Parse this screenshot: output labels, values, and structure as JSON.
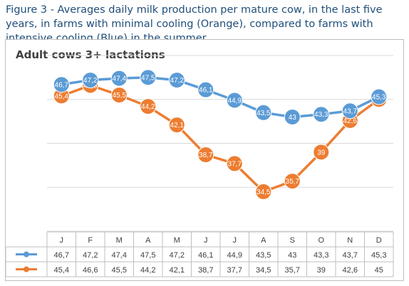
{
  "caption": "Figure 3 - Averages daily milk production per mature cow, in the last five years, in farms with minimal cooling (Orange), compared to farms with intensive cooling (Blue) in the summer.",
  "chart_data": {
    "type": "line",
    "title": "Adult cows 3+ lactations",
    "categories": [
      "J",
      "F",
      "M",
      "A",
      "M",
      "J",
      "J",
      "A",
      "S",
      "O",
      "N",
      "D"
    ],
    "ylim": [
      30,
      50
    ],
    "grid": true,
    "legend": "data-table",
    "series": [
      {
        "color": "#5b9bd5",
        "values": [
          46.7,
          47.2,
          47.4,
          47.5,
          47.2,
          46.1,
          44.9,
          43.5,
          43,
          43.3,
          43.7,
          45.3
        ],
        "labels": [
          "46,7",
          "47,2",
          "47,4",
          "47,5",
          "47,2",
          "46,1",
          "44,9",
          "43,5",
          "43",
          "43,3",
          "43,7",
          "45,3"
        ]
      },
      {
        "color": "#ed7d31",
        "values": [
          45.4,
          46.6,
          45.5,
          44.2,
          42.1,
          38.7,
          37.7,
          34.5,
          35.7,
          39,
          42.6,
          45
        ],
        "labels": [
          "45,4",
          "46,6",
          "45,5",
          "44,2",
          "42,1",
          "38,7",
          "37,7",
          "34,5",
          "35,7",
          "39",
          "42,6",
          "45"
        ]
      }
    ]
  }
}
